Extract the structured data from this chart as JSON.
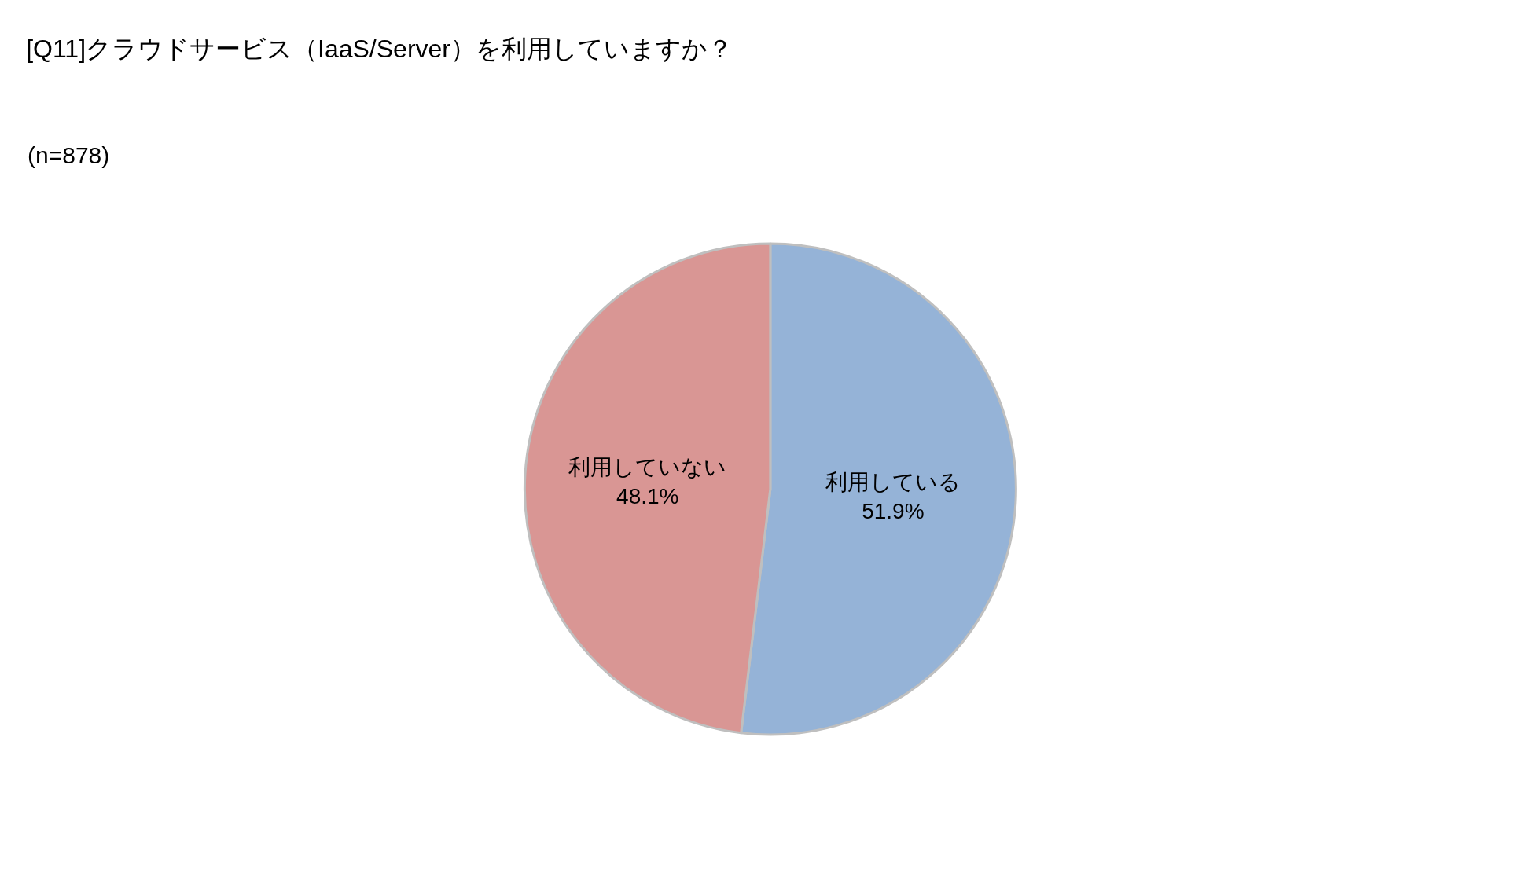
{
  "chart_data": {
    "type": "pie",
    "title": "[Q11]クラウドサービス（IaaS/Server）を利用していますか？",
    "subtitle": "(n=878)",
    "categories": [
      "利用している",
      "利用していない"
    ],
    "values": [
      51.9,
      48.1
    ],
    "value_labels": [
      "51.9%",
      "48.1%"
    ],
    "colors": [
      "#95b3d7",
      "#d99694"
    ],
    "legend": false
  }
}
